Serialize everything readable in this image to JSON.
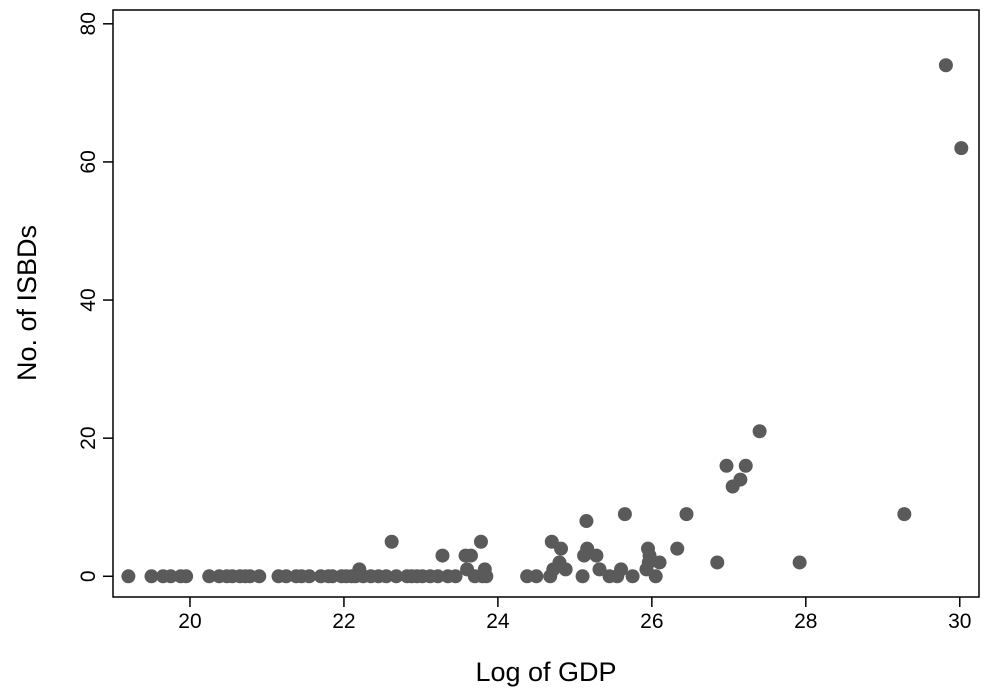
{
  "chart_data": {
    "type": "scatter",
    "title": "",
    "xlabel": "Log of GDP",
    "ylabel": "No. of ISBDs",
    "xlim": [
      19.0,
      30.25
    ],
    "ylim": [
      -3,
      82
    ],
    "xticks": [
      20,
      22,
      24,
      26,
      28,
      30
    ],
    "yticks": [
      0,
      20,
      40,
      60,
      80
    ],
    "grid": false,
    "legend": "none",
    "marker_color": "#5a5a5a",
    "axis_color": "#000000",
    "points": [
      [
        19.2,
        0
      ],
      [
        19.5,
        0
      ],
      [
        19.65,
        0
      ],
      [
        19.75,
        0
      ],
      [
        19.88,
        0
      ],
      [
        19.95,
        0
      ],
      [
        20.25,
        0
      ],
      [
        20.38,
        0
      ],
      [
        20.48,
        0
      ],
      [
        20.55,
        0
      ],
      [
        20.65,
        0
      ],
      [
        20.72,
        0
      ],
      [
        20.78,
        0
      ],
      [
        20.9,
        0
      ],
      [
        21.15,
        0
      ],
      [
        21.25,
        0
      ],
      [
        21.38,
        0
      ],
      [
        21.45,
        0
      ],
      [
        21.55,
        0
      ],
      [
        21.7,
        0
      ],
      [
        21.8,
        0
      ],
      [
        21.85,
        0
      ],
      [
        21.97,
        0
      ],
      [
        22.03,
        0
      ],
      [
        22.1,
        0
      ],
      [
        22.15,
        0
      ],
      [
        22.2,
        1
      ],
      [
        22.25,
        0
      ],
      [
        22.35,
        0
      ],
      [
        22.45,
        0
      ],
      [
        22.55,
        0
      ],
      [
        22.62,
        5
      ],
      [
        22.68,
        0
      ],
      [
        22.82,
        0
      ],
      [
        22.88,
        0
      ],
      [
        22.95,
        0
      ],
      [
        23.02,
        0
      ],
      [
        23.12,
        0
      ],
      [
        23.22,
        0
      ],
      [
        23.28,
        3
      ],
      [
        23.35,
        0
      ],
      [
        23.45,
        0
      ],
      [
        23.58,
        3
      ],
      [
        23.6,
        1
      ],
      [
        23.65,
        3
      ],
      [
        23.7,
        0
      ],
      [
        23.78,
        5
      ],
      [
        23.8,
        0
      ],
      [
        23.83,
        1
      ],
      [
        23.85,
        0
      ],
      [
        24.38,
        0
      ],
      [
        24.5,
        0
      ],
      [
        24.68,
        0
      ],
      [
        24.7,
        5
      ],
      [
        24.72,
        1
      ],
      [
        24.8,
        2
      ],
      [
        24.82,
        4
      ],
      [
        24.88,
        1
      ],
      [
        25.1,
        0
      ],
      [
        25.12,
        3
      ],
      [
        25.15,
        8
      ],
      [
        25.16,
        4
      ],
      [
        25.28,
        3
      ],
      [
        25.32,
        1
      ],
      [
        25.45,
        0
      ],
      [
        25.55,
        0
      ],
      [
        25.6,
        1
      ],
      [
        25.65,
        9
      ],
      [
        25.75,
        0
      ],
      [
        25.93,
        1
      ],
      [
        25.95,
        4
      ],
      [
        25.96,
        2
      ],
      [
        25.97,
        3
      ],
      [
        26.05,
        0
      ],
      [
        26.1,
        2
      ],
      [
        26.33,
        4
      ],
      [
        26.45,
        9
      ],
      [
        26.85,
        2
      ],
      [
        26.97,
        16
      ],
      [
        27.05,
        13
      ],
      [
        27.15,
        14
      ],
      [
        27.22,
        16
      ],
      [
        27.4,
        21
      ],
      [
        27.92,
        2
      ],
      [
        29.28,
        9
      ],
      [
        29.82,
        74
      ],
      [
        30.02,
        62
      ]
    ]
  }
}
